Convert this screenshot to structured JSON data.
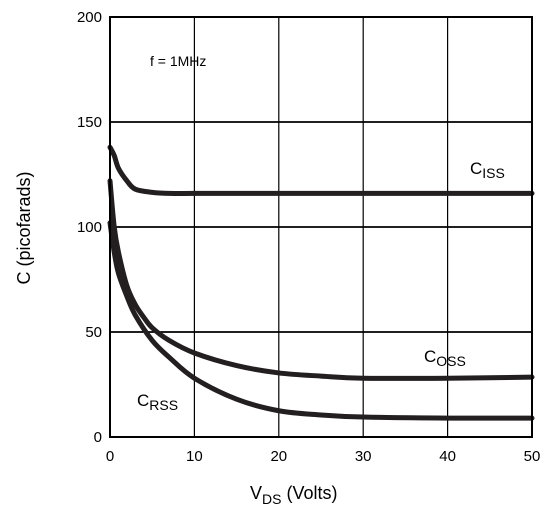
{
  "chart_data": {
    "type": "line",
    "xlabel": {
      "main": "V",
      "sub": "DS",
      "rest": " (Volts)"
    },
    "ylabel": "C (picofarads)",
    "annotation": "f = 1MHz",
    "xlim": [
      0,
      50
    ],
    "ylim": [
      0,
      200
    ],
    "x_ticks": [
      0,
      10,
      20,
      30,
      40,
      50
    ],
    "y_ticks": [
      0,
      50,
      100,
      150,
      200
    ],
    "grid": true,
    "series": [
      {
        "name": {
          "main": "C",
          "sub": "ISS"
        },
        "x": [
          0,
          0.5,
          1,
          2,
          3,
          5,
          7,
          10,
          15,
          20,
          30,
          40,
          50
        ],
        "y": [
          138,
          134,
          128,
          122,
          118,
          116.5,
          116,
          116,
          116,
          116,
          116,
          116,
          116
        ]
      },
      {
        "name": {
          "main": "C",
          "sub": "OSS"
        },
        "x": [
          0,
          0.5,
          1,
          2,
          3,
          4,
          5,
          7,
          10,
          15,
          20,
          25,
          30,
          40,
          50
        ],
        "y": [
          122,
          100,
          88,
          72,
          63,
          57,
          52,
          46,
          40,
          34,
          30.5,
          29,
          28,
          28,
          28.5
        ]
      },
      {
        "name": {
          "main": "C",
          "sub": "RSS"
        },
        "x": [
          0,
          0.5,
          1,
          2,
          3,
          5,
          7,
          10,
          15,
          20,
          25,
          30,
          40,
          50
        ],
        "y": [
          102,
          88,
          78,
          67,
          58,
          46,
          38,
          28,
          18,
          12.5,
          10.5,
          9.5,
          9,
          9
        ]
      }
    ]
  }
}
